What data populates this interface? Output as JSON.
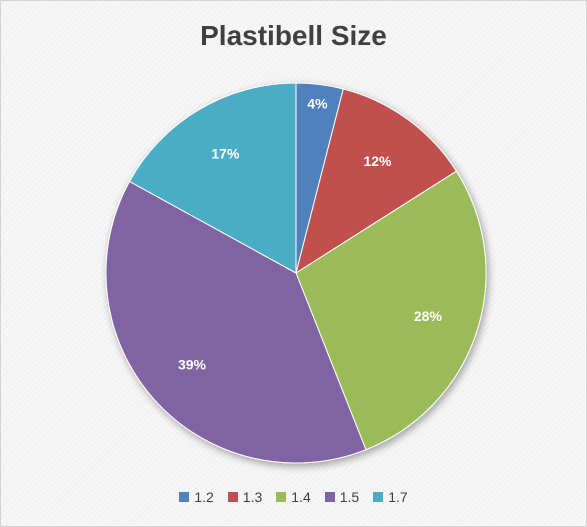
{
  "chart_data": {
    "type": "pie",
    "title": "Plastibell Size",
    "categories": [
      "1.2",
      "1.3",
      "1.4",
      "1.5",
      "1.7"
    ],
    "values": [
      4,
      12,
      28,
      39,
      17
    ],
    "data_labels": [
      "4%",
      "12%",
      "28%",
      "39%",
      "17%"
    ],
    "colors": [
      "#4f81bd",
      "#c0504d",
      "#9bbb59",
      "#8064a2",
      "#4bacc6"
    ],
    "legend_position": "bottom"
  }
}
